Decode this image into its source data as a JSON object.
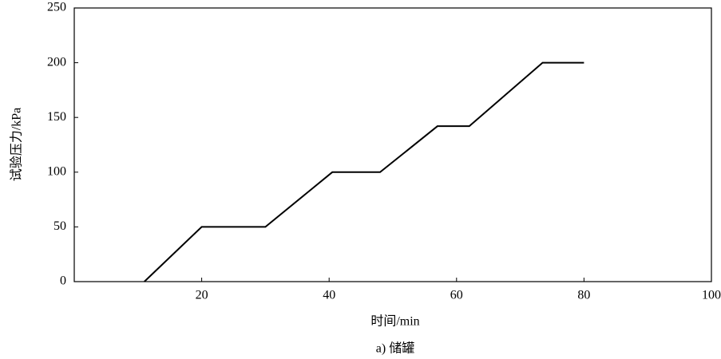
{
  "chart_data": {
    "type": "line",
    "caption": "a) 储罐",
    "xlabel": "时间/min",
    "ylabel": "试验压力/kPa",
    "x": [
      11,
      20,
      30,
      40.5,
      48,
      57,
      62,
      73.5,
      80
    ],
    "series": [
      {
        "color": "#000000",
        "values": [
          0,
          50,
          50,
          100,
          100,
          142,
          142,
          200,
          200
        ]
      }
    ],
    "xlim": [
      0,
      100
    ],
    "xticks": [
      20,
      40,
      60,
      80,
      100
    ],
    "ylim": [
      0,
      250
    ],
    "yticks": [
      0,
      50,
      100,
      150,
      200,
      250
    ]
  }
}
